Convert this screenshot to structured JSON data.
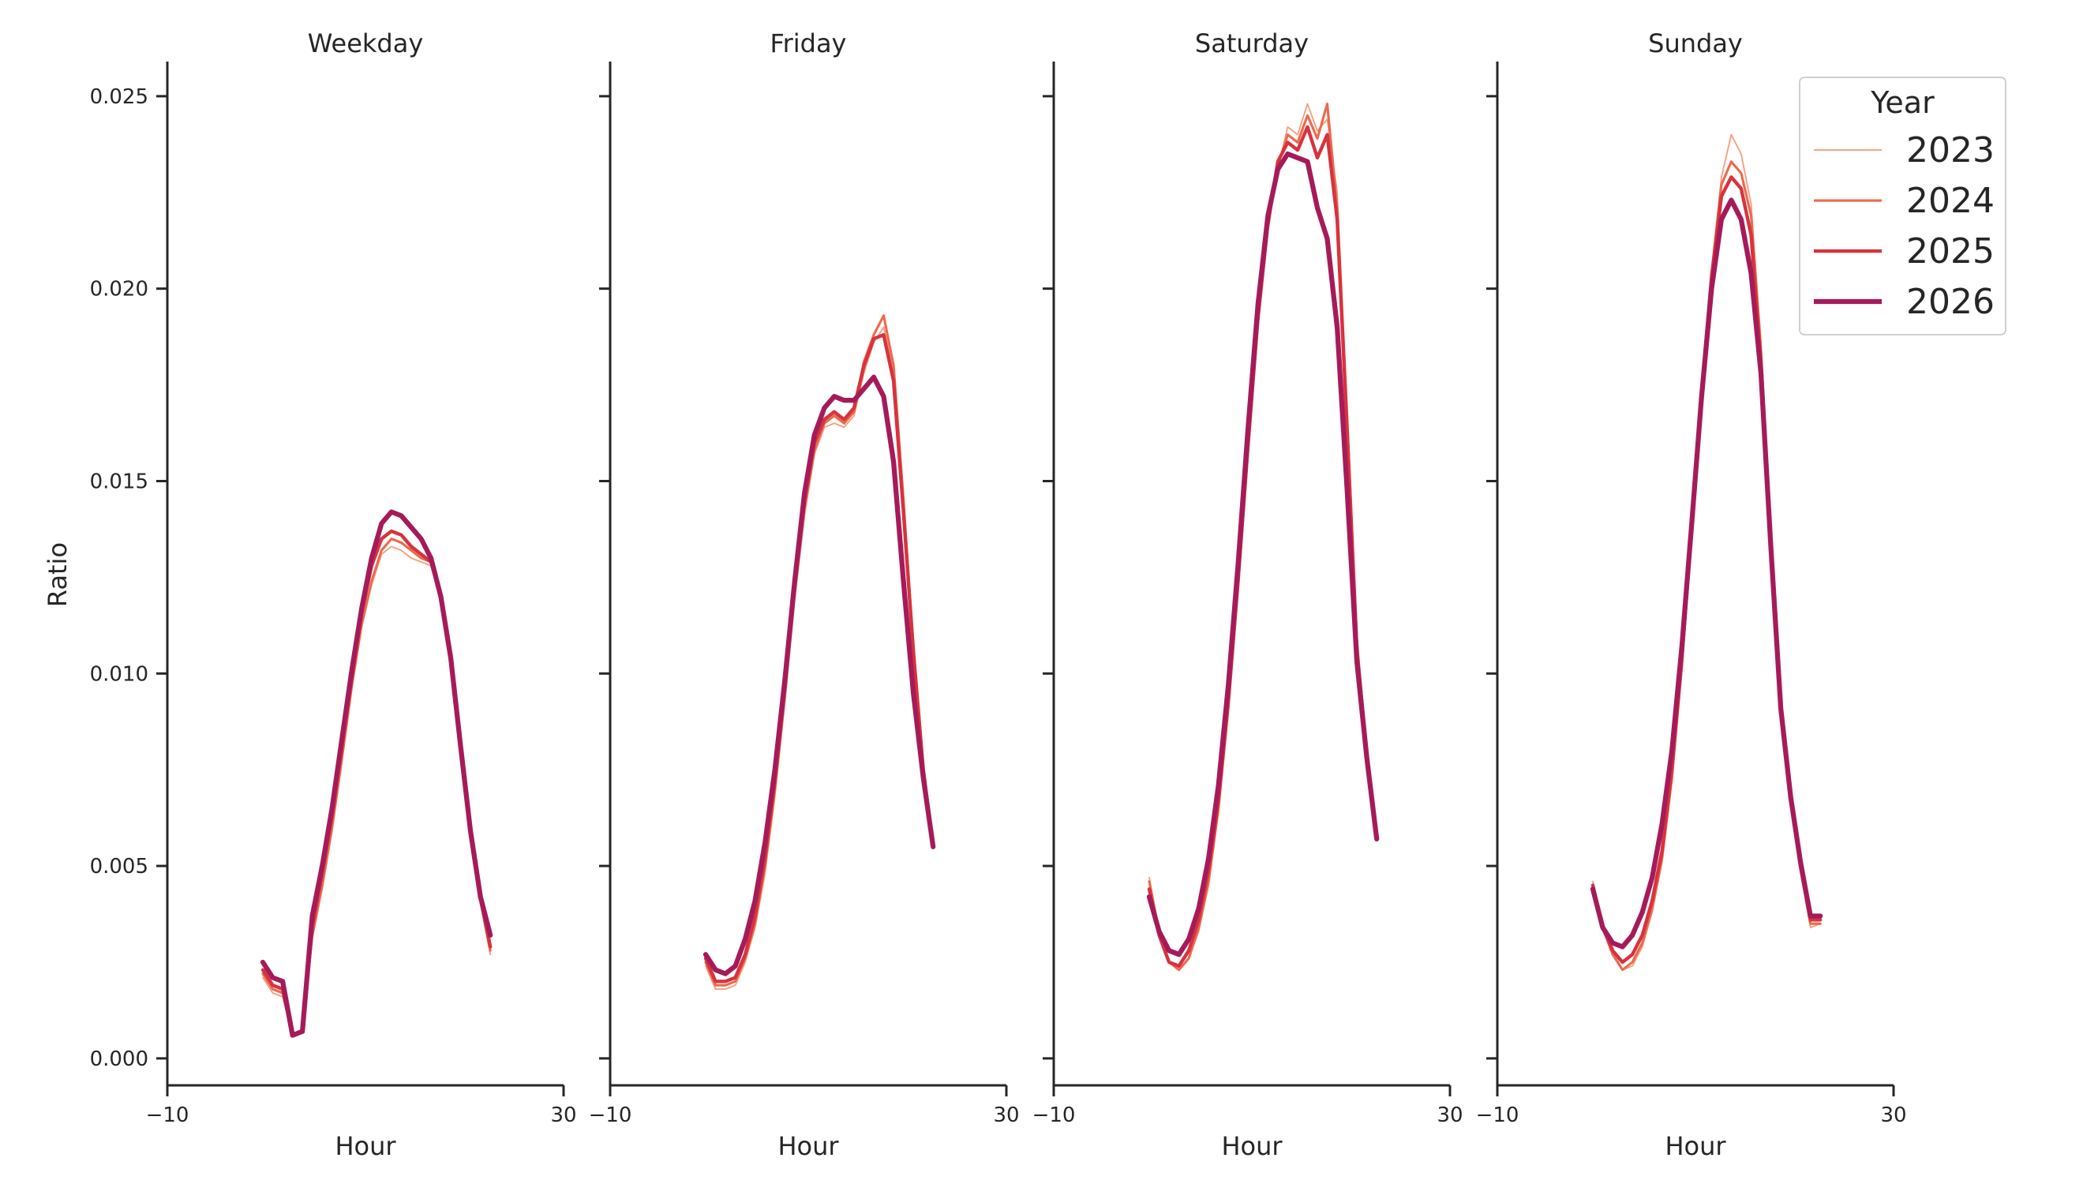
{
  "chart_data": {
    "type": "line",
    "xlabel": "Hour",
    "ylabel": "Ratio",
    "xlim": [
      -10,
      30
    ],
    "ylim": [
      -0.0007,
      0.0259
    ],
    "x_ticks": [
      -10,
      30
    ],
    "x_tick_labels": [
      "−10",
      "30"
    ],
    "y_ticks": [
      0.0,
      0.005,
      0.01,
      0.015,
      0.02,
      0.025
    ],
    "y_tick_labels": [
      "0.000",
      "0.005",
      "0.010",
      "0.015",
      "0.020",
      "0.025"
    ],
    "grid": false,
    "legend": {
      "title": "Year",
      "placement": "top-right",
      "entries": [
        "2023",
        "2024",
        "2025",
        "2026"
      ]
    },
    "series_styles": [
      {
        "name": "2023",
        "color": "#f5a07e",
        "width": 1.5
      },
      {
        "name": "2024",
        "color": "#eb6a4e",
        "width": 2.5
      },
      {
        "name": "2025",
        "color": "#d6333f",
        "width": 3.5
      },
      {
        "name": "2026",
        "color": "#a51b5a",
        "width": 5.0
      }
    ],
    "x": [
      0,
      1,
      2,
      3,
      4,
      5,
      6,
      7,
      8,
      9,
      10,
      11,
      12,
      13,
      14,
      15,
      16,
      17,
      18,
      19,
      20,
      21,
      22,
      23
    ],
    "panels": [
      {
        "title": "Weekday",
        "series": [
          {
            "name": "2023",
            "values": [
              0.0021,
              0.0017,
              0.0016,
              0.0006,
              0.0007,
              0.0031,
              0.0044,
              0.0059,
              0.0077,
              0.0096,
              0.0112,
              0.0123,
              0.0131,
              0.0133,
              0.0132,
              0.013,
              0.0129,
              0.0128,
              0.0119,
              0.0103,
              0.008,
              0.0058,
              0.004,
              0.0027
            ]
          },
          {
            "name": "2024",
            "values": [
              0.0022,
              0.0018,
              0.0017,
              0.0006,
              0.0007,
              0.0032,
              0.0045,
              0.006,
              0.0078,
              0.0097,
              0.0113,
              0.0124,
              0.0132,
              0.0135,
              0.0134,
              0.0132,
              0.013,
              0.0129,
              0.012,
              0.0104,
              0.0081,
              0.0059,
              0.0041,
              0.0028
            ]
          },
          {
            "name": "2025",
            "values": [
              0.0023,
              0.0019,
              0.0018,
              0.0006,
              0.0007,
              0.0034,
              0.0048,
              0.0063,
              0.0081,
              0.0099,
              0.0116,
              0.0128,
              0.0135,
              0.0137,
              0.0136,
              0.0133,
              0.0131,
              0.0129,
              0.012,
              0.0104,
              0.0081,
              0.0059,
              0.0042,
              0.0029
            ]
          },
          {
            "name": "2026",
            "values": [
              0.0025,
              0.0021,
              0.002,
              0.0006,
              0.0007,
              0.0037,
              0.005,
              0.0065,
              0.0083,
              0.0101,
              0.0117,
              0.013,
              0.0139,
              0.0142,
              0.0141,
              0.0138,
              0.0135,
              0.013,
              0.012,
              0.0104,
              0.0081,
              0.0059,
              0.0042,
              0.0032
            ]
          }
        ]
      },
      {
        "title": "Friday",
        "series": [
          {
            "name": "2023",
            "values": [
              0.0024,
              0.0018,
              0.0018,
              0.0019,
              0.0025,
              0.0034,
              0.0048,
              0.0068,
              0.0092,
              0.0119,
              0.0141,
              0.0157,
              0.0164,
              0.0165,
              0.0164,
              0.0167,
              0.0178,
              0.0186,
              0.019,
              0.0179,
              0.0143,
              0.0106,
              0.0076,
              0.0056
            ]
          },
          {
            "name": "2024",
            "values": [
              0.0025,
              0.0019,
              0.0019,
              0.002,
              0.0026,
              0.0035,
              0.005,
              0.007,
              0.0094,
              0.0121,
              0.0143,
              0.0158,
              0.0165,
              0.0167,
              0.0165,
              0.0168,
              0.0181,
              0.0188,
              0.0193,
              0.018,
              0.0145,
              0.0107,
              0.0076,
              0.0056
            ]
          },
          {
            "name": "2025",
            "values": [
              0.0026,
              0.002,
              0.002,
              0.0021,
              0.0027,
              0.0037,
              0.0052,
              0.0072,
              0.0096,
              0.0123,
              0.0145,
              0.016,
              0.0166,
              0.0168,
              0.0166,
              0.0169,
              0.018,
              0.0187,
              0.0188,
              0.0176,
              0.0142,
              0.0106,
              0.0075,
              0.0055
            ]
          },
          {
            "name": "2026",
            "values": [
              0.0027,
              0.0023,
              0.0022,
              0.0024,
              0.0031,
              0.0041,
              0.0056,
              0.0075,
              0.0098,
              0.0124,
              0.0147,
              0.0162,
              0.0169,
              0.0172,
              0.0171,
              0.0171,
              0.0174,
              0.0177,
              0.0172,
              0.0155,
              0.0124,
              0.0095,
              0.0073,
              0.0055
            ]
          }
        ]
      },
      {
        "title": "Saturday",
        "series": [
          {
            "name": "2023",
            "values": [
              0.0047,
              0.0033,
              0.0025,
              0.0023,
              0.0026,
              0.0033,
              0.0045,
              0.0064,
              0.009,
              0.0122,
              0.0157,
              0.019,
              0.0215,
              0.0231,
              0.0242,
              0.024,
              0.0248,
              0.0241,
              0.0244,
              0.0225,
              0.017,
              0.011,
              0.008,
              0.0057
            ]
          },
          {
            "name": "2024",
            "values": [
              0.0046,
              0.0033,
              0.0025,
              0.0023,
              0.0026,
              0.0034,
              0.0046,
              0.0065,
              0.0091,
              0.0123,
              0.0158,
              0.0191,
              0.0216,
              0.0232,
              0.024,
              0.0238,
              0.0245,
              0.0239,
              0.0248,
              0.0221,
              0.0166,
              0.0108,
              0.0079,
              0.0057
            ]
          },
          {
            "name": "2025",
            "values": [
              0.0044,
              0.0032,
              0.0025,
              0.0024,
              0.0028,
              0.0036,
              0.0049,
              0.0067,
              0.0093,
              0.0125,
              0.016,
              0.0193,
              0.0217,
              0.0233,
              0.0238,
              0.0236,
              0.0242,
              0.0234,
              0.024,
              0.0218,
              0.0164,
              0.0106,
              0.0079,
              0.0057
            ]
          },
          {
            "name": "2026",
            "values": [
              0.0042,
              0.0033,
              0.0028,
              0.0027,
              0.0031,
              0.0039,
              0.0052,
              0.0071,
              0.0097,
              0.0129,
              0.0164,
              0.0196,
              0.0219,
              0.0231,
              0.0235,
              0.0234,
              0.0233,
              0.0221,
              0.0213,
              0.019,
              0.0148,
              0.0103,
              0.0078,
              0.0057
            ]
          }
        ]
      },
      {
        "title": "Sunday",
        "series": [
          {
            "name": "2023",
            "values": [
              0.0046,
              0.0035,
              0.0028,
              0.0023,
              0.0024,
              0.0029,
              0.0038,
              0.0051,
              0.0072,
              0.0101,
              0.0136,
              0.0172,
              0.0204,
              0.0229,
              0.024,
              0.0235,
              0.0222,
              0.0186,
              0.0134,
              0.0091,
              0.0067,
              0.0049,
              0.0034,
              0.0035
            ]
          },
          {
            "name": "2024",
            "values": [
              0.0045,
              0.0034,
              0.0027,
              0.0023,
              0.0025,
              0.003,
              0.0039,
              0.0052,
              0.0073,
              0.0102,
              0.0137,
              0.0172,
              0.0204,
              0.0227,
              0.0233,
              0.023,
              0.0219,
              0.0184,
              0.0134,
              0.0091,
              0.0067,
              0.0049,
              0.0035,
              0.0035
            ]
          },
          {
            "name": "2025",
            "values": [
              0.0045,
              0.0034,
              0.0028,
              0.0025,
              0.0027,
              0.0032,
              0.0041,
              0.0054,
              0.0075,
              0.0104,
              0.0138,
              0.0173,
              0.0203,
              0.0224,
              0.0229,
              0.0226,
              0.0214,
              0.0181,
              0.0133,
              0.0091,
              0.0068,
              0.005,
              0.0036,
              0.0036
            ]
          },
          {
            "name": "2026",
            "values": [
              0.0044,
              0.0034,
              0.003,
              0.0029,
              0.0032,
              0.0038,
              0.0047,
              0.0061,
              0.008,
              0.0107,
              0.0139,
              0.0172,
              0.02,
              0.0218,
              0.0223,
              0.0218,
              0.0204,
              0.0178,
              0.0133,
              0.0091,
              0.0068,
              0.0051,
              0.0037,
              0.0037
            ]
          }
        ]
      }
    ]
  }
}
